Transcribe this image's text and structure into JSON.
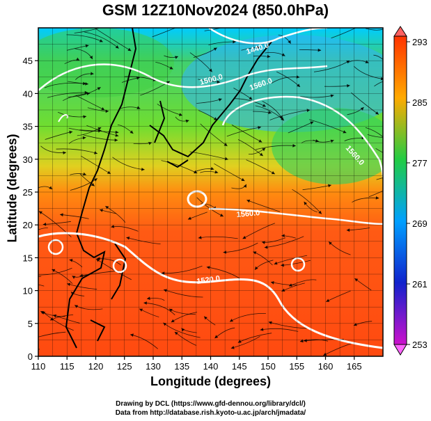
{
  "title": "GSM 12Z10Nov2024 (850.0hPa)",
  "xlabel": "Longitude (degrees)",
  "ylabel": "Latitude  (degrees)",
  "credit_line1": "Drawing by DCL (https://www.gfd-dennou.org/library/dcl/)",
  "credit_line2": "Data from http://database.rish.kyoto-u.ac.jp/arch/jmadata/",
  "map": {
    "lon_range": [
      110,
      170
    ],
    "lat_range": [
      0,
      50
    ],
    "lon_ticks": [
      110,
      115,
      120,
      125,
      130,
      135,
      140,
      145,
      150,
      155,
      160,
      165
    ],
    "lat_ticks": [
      0,
      5,
      10,
      15,
      20,
      25,
      30,
      35,
      40,
      45
    ],
    "grid": true
  },
  "colorbar": {
    "tick_labels": [
      "293",
      "285",
      "277",
      "269",
      "261",
      "253"
    ],
    "range": [
      253,
      293
    ],
    "colors": [
      "#cc11cc",
      "#1122cc",
      "#00a0ff",
      "#22cc44",
      "#ffdd00",
      "#ff3300"
    ]
  },
  "contour_labels": [
    "1440.0",
    "1500.0",
    "1560.0",
    "1560.0",
    "1560.0",
    "1520.0"
  ],
  "contour_color": "#ffffff"
}
